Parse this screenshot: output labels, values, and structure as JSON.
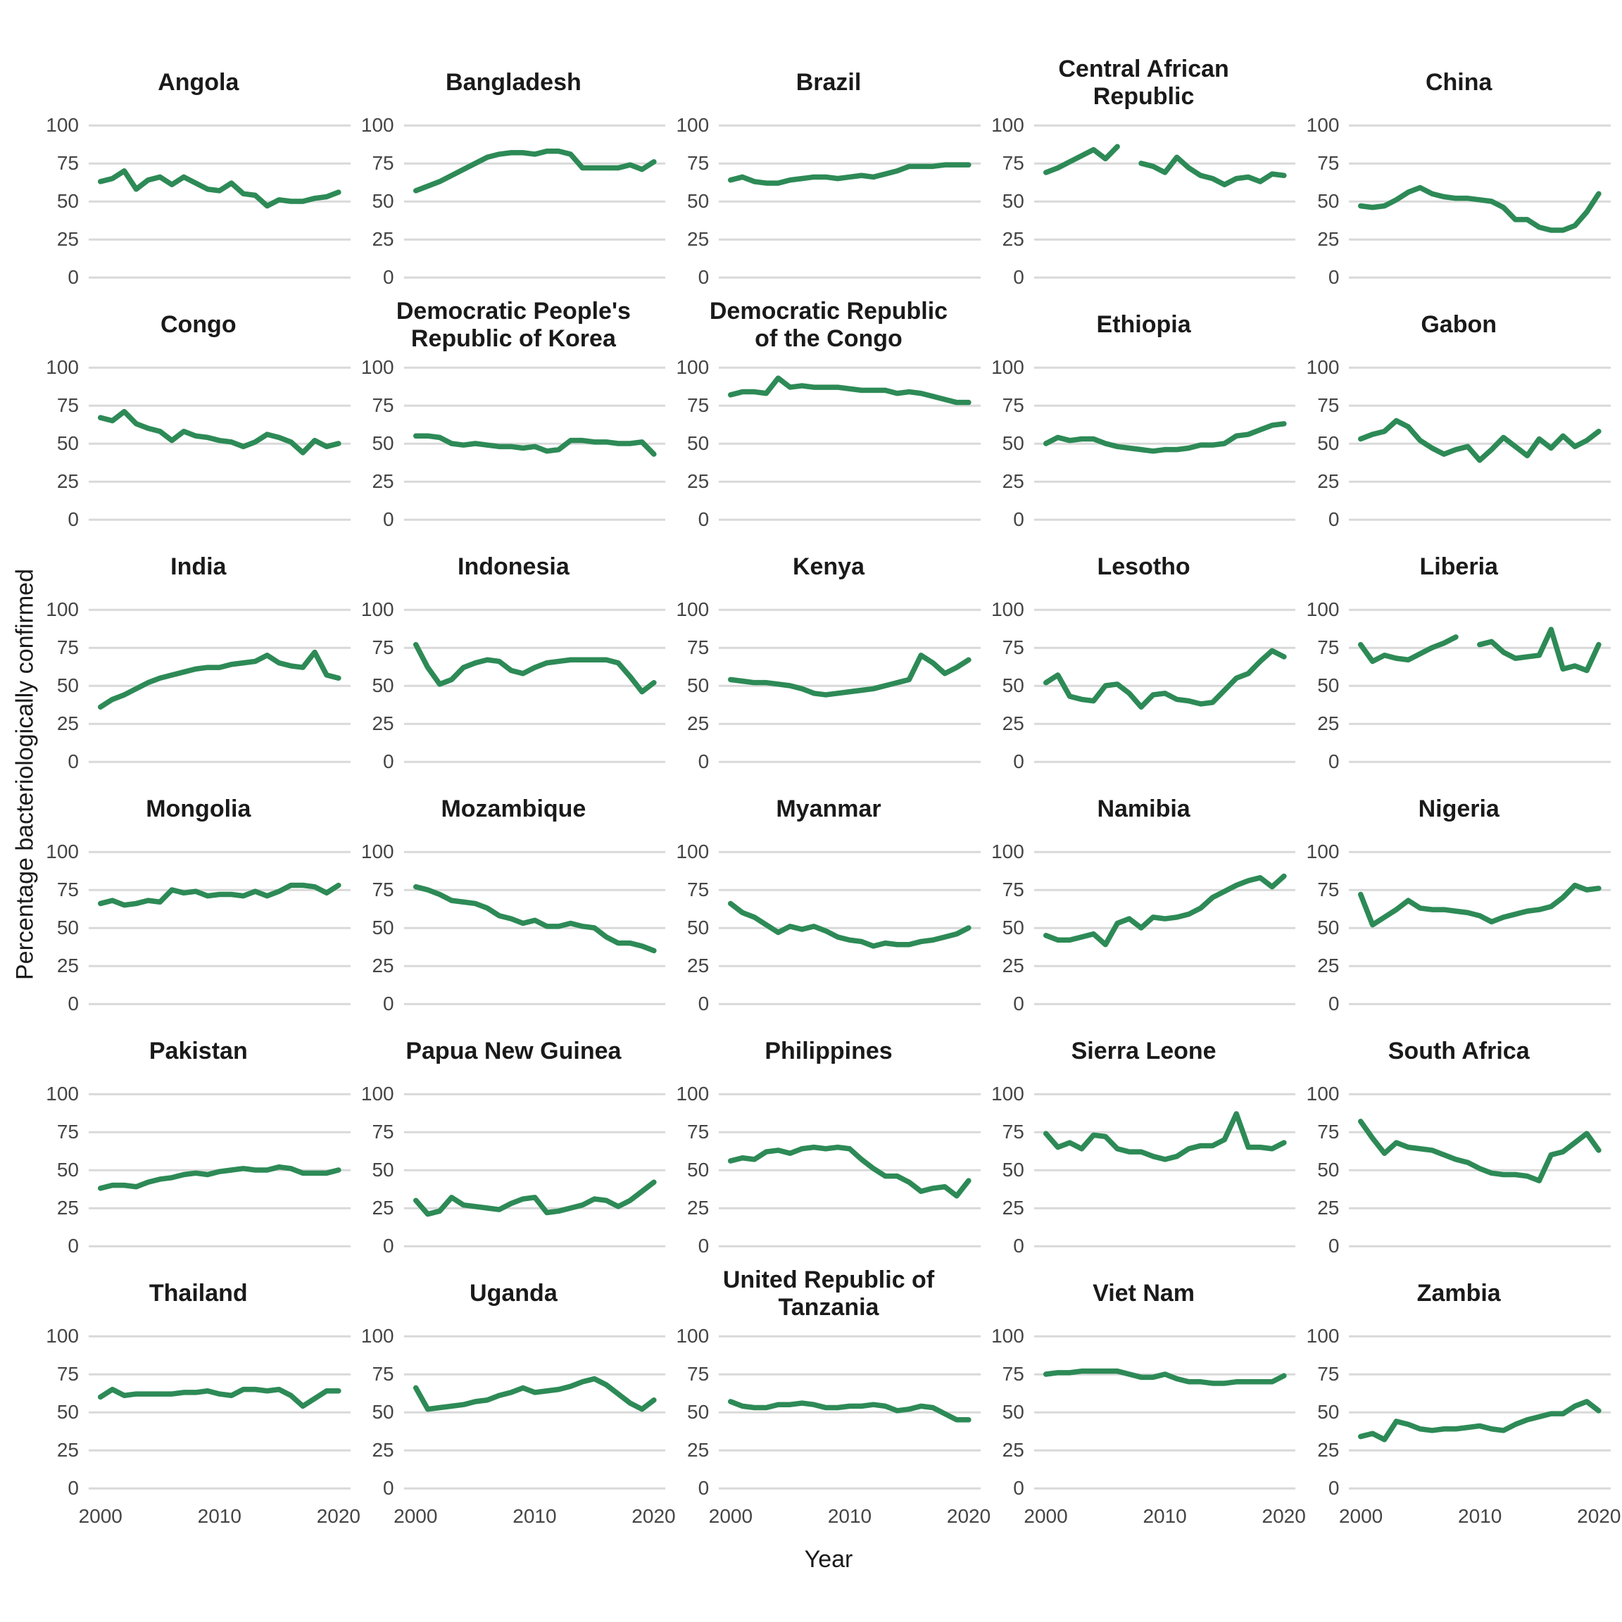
{
  "figure": {
    "y_axis_title": "Percentage bacteriologically confirmed",
    "x_axis_title": "Year",
    "colors": {
      "line": "#2d8a56",
      "gridline": "#d9d9d9",
      "tick_text": "#454545",
      "title_text": "#1a1a1a",
      "background": "#ffffff"
    }
  },
  "chart_data": {
    "type": "line",
    "layout": "small-multiples 6 rows x 5 cols",
    "grid": "horizontal-only",
    "legend": "none",
    "x": [
      2000,
      2001,
      2002,
      2003,
      2004,
      2005,
      2006,
      2007,
      2008,
      2009,
      2010,
      2011,
      2012,
      2013,
      2014,
      2015,
      2016,
      2017,
      2018,
      2019,
      2020
    ],
    "x_ticks": [
      2000,
      2010,
      2020
    ],
    "y_ticks": [
      100,
      75,
      50,
      25,
      0
    ],
    "ylim": [
      0,
      100
    ],
    "xlabel": "Year",
    "ylabel": "Percentage bacteriologically confirmed",
    "facets": [
      {
        "title": "Angola",
        "values": [
          63,
          65,
          70,
          58,
          64,
          66,
          61,
          66,
          62,
          58,
          57,
          62,
          55,
          54,
          47,
          51,
          50,
          50,
          52,
          53,
          56
        ]
      },
      {
        "title": "Bangladesh",
        "values": [
          57,
          60,
          63,
          67,
          71,
          75,
          79,
          81,
          82,
          82,
          81,
          83,
          83,
          81,
          72,
          72,
          72,
          72,
          74,
          71,
          76
        ]
      },
      {
        "title": "Brazil",
        "values": [
          64,
          66,
          63,
          62,
          62,
          64,
          65,
          66,
          66,
          65,
          66,
          67,
          66,
          68,
          70,
          73,
          73,
          73,
          74,
          74,
          74
        ]
      },
      {
        "title": "Central African Republic",
        "values": [
          69,
          72,
          76,
          80,
          84,
          78,
          86,
          null,
          75,
          73,
          69,
          79,
          72,
          67,
          65,
          61,
          65,
          66,
          63,
          68,
          67
        ]
      },
      {
        "title": "China",
        "values": [
          47,
          46,
          47,
          51,
          56,
          59,
          55,
          53,
          52,
          52,
          51,
          50,
          46,
          38,
          38,
          33,
          31,
          31,
          34,
          43,
          55
        ]
      },
      {
        "title": "Congo",
        "values": [
          67,
          65,
          71,
          63,
          60,
          58,
          52,
          58,
          55,
          54,
          52,
          51,
          48,
          51,
          56,
          54,
          51,
          44,
          52,
          48,
          50
        ]
      },
      {
        "title": "Democratic People's Republic of Korea",
        "values": [
          55,
          55,
          54,
          50,
          49,
          50,
          49,
          48,
          48,
          47,
          48,
          45,
          46,
          52,
          52,
          51,
          51,
          50,
          50,
          51,
          43
        ]
      },
      {
        "title": "Democratic Republic of the Congo",
        "values": [
          82,
          84,
          84,
          83,
          93,
          87,
          88,
          87,
          87,
          87,
          86,
          85,
          85,
          85,
          83,
          84,
          83,
          81,
          79,
          77,
          77
        ]
      },
      {
        "title": "Ethiopia",
        "values": [
          50,
          54,
          52,
          53,
          53,
          50,
          48,
          47,
          46,
          45,
          46,
          46,
          47,
          49,
          49,
          50,
          55,
          56,
          59,
          62,
          63
        ]
      },
      {
        "title": "Gabon",
        "values": [
          53,
          56,
          58,
          65,
          61,
          52,
          47,
          43,
          46,
          48,
          39,
          46,
          54,
          48,
          42,
          53,
          47,
          55,
          48,
          52,
          58
        ]
      },
      {
        "title": "India",
        "values": [
          36,
          41,
          44,
          48,
          52,
          55,
          57,
          59,
          61,
          62,
          62,
          64,
          65,
          66,
          70,
          65,
          63,
          62,
          72,
          57,
          55
        ]
      },
      {
        "title": "Indonesia",
        "values": [
          77,
          62,
          51,
          54,
          62,
          65,
          67,
          66,
          60,
          58,
          62,
          65,
          66,
          67,
          67,
          67,
          67,
          65,
          56,
          46,
          52
        ]
      },
      {
        "title": "Kenya",
        "values": [
          54,
          53,
          52,
          52,
          51,
          50,
          48,
          45,
          44,
          45,
          46,
          47,
          48,
          50,
          52,
          54,
          70,
          65,
          58,
          62,
          67
        ]
      },
      {
        "title": "Lesotho",
        "values": [
          52,
          57,
          43,
          41,
          40,
          50,
          51,
          45,
          36,
          44,
          45,
          41,
          40,
          38,
          39,
          47,
          55,
          58,
          66,
          73,
          69
        ]
      },
      {
        "title": "Liberia",
        "values": [
          77,
          66,
          70,
          68,
          67,
          71,
          75,
          78,
          82,
          null,
          77,
          79,
          72,
          68,
          69,
          70,
          87,
          61,
          63,
          60,
          77
        ]
      },
      {
        "title": "Mongolia",
        "values": [
          66,
          68,
          65,
          66,
          68,
          67,
          75,
          73,
          74,
          71,
          72,
          72,
          71,
          74,
          71,
          74,
          78,
          78,
          77,
          73,
          78
        ]
      },
      {
        "title": "Mozambique",
        "values": [
          77,
          75,
          72,
          68,
          67,
          66,
          63,
          58,
          56,
          53,
          55,
          51,
          51,
          53,
          51,
          50,
          44,
          40,
          40,
          38,
          35
        ]
      },
      {
        "title": "Myanmar",
        "values": [
          66,
          60,
          57,
          52,
          47,
          51,
          49,
          51,
          48,
          44,
          42,
          41,
          38,
          40,
          39,
          39,
          41,
          42,
          44,
          46,
          50
        ]
      },
      {
        "title": "Namibia",
        "values": [
          45,
          42,
          42,
          44,
          46,
          39,
          53,
          56,
          50,
          57,
          56,
          57,
          59,
          63,
          70,
          74,
          78,
          81,
          83,
          77,
          84
        ]
      },
      {
        "title": "Nigeria",
        "values": [
          72,
          52,
          57,
          62,
          68,
          63,
          62,
          62,
          61,
          60,
          58,
          54,
          57,
          59,
          61,
          62,
          64,
          70,
          78,
          75,
          76
        ]
      },
      {
        "title": "Pakistan",
        "values": [
          38,
          40,
          40,
          39,
          42,
          44,
          45,
          47,
          48,
          47,
          49,
          50,
          51,
          50,
          50,
          52,
          51,
          48,
          48,
          48,
          50
        ]
      },
      {
        "title": "Papua New Guinea",
        "values": [
          30,
          21,
          23,
          32,
          27,
          26,
          25,
          24,
          28,
          31,
          32,
          22,
          23,
          25,
          27,
          31,
          30,
          26,
          30,
          36,
          42
        ]
      },
      {
        "title": "Philippines",
        "values": [
          56,
          58,
          57,
          62,
          63,
          61,
          64,
          65,
          64,
          65,
          64,
          57,
          51,
          46,
          46,
          42,
          36,
          38,
          39,
          33,
          43
        ]
      },
      {
        "title": "Sierra Leone",
        "values": [
          74,
          65,
          68,
          64,
          73,
          72,
          64,
          62,
          62,
          59,
          57,
          59,
          64,
          66,
          66,
          70,
          87,
          65,
          65,
          64,
          68
        ]
      },
      {
        "title": "South Africa",
        "values": [
          82,
          71,
          61,
          68,
          65,
          64,
          63,
          60,
          57,
          55,
          51,
          48,
          47,
          47,
          46,
          43,
          60,
          62,
          68,
          74,
          63
        ]
      },
      {
        "title": "Thailand",
        "values": [
          60,
          65,
          61,
          62,
          62,
          62,
          62,
          63,
          63,
          64,
          62,
          61,
          65,
          65,
          64,
          65,
          61,
          54,
          59,
          64,
          64
        ]
      },
      {
        "title": "Uganda",
        "values": [
          66,
          52,
          53,
          54,
          55,
          57,
          58,
          61,
          63,
          66,
          63,
          64,
          65,
          67,
          70,
          72,
          68,
          62,
          56,
          52,
          58
        ]
      },
      {
        "title": "United Republic of Tanzania",
        "values": [
          57,
          54,
          53,
          53,
          55,
          55,
          56,
          55,
          53,
          53,
          54,
          54,
          55,
          54,
          51,
          52,
          54,
          53,
          49,
          45,
          45
        ]
      },
      {
        "title": "Viet Nam",
        "values": [
          75,
          76,
          76,
          77,
          77,
          77,
          77,
          75,
          73,
          73,
          75,
          72,
          70,
          70,
          69,
          69,
          70,
          70,
          70,
          70,
          74
        ]
      },
      {
        "title": "Zambia",
        "values": [
          34,
          36,
          32,
          44,
          42,
          39,
          38,
          39,
          39,
          40,
          41,
          39,
          38,
          42,
          45,
          47,
          49,
          49,
          54,
          57,
          51
        ]
      }
    ]
  }
}
